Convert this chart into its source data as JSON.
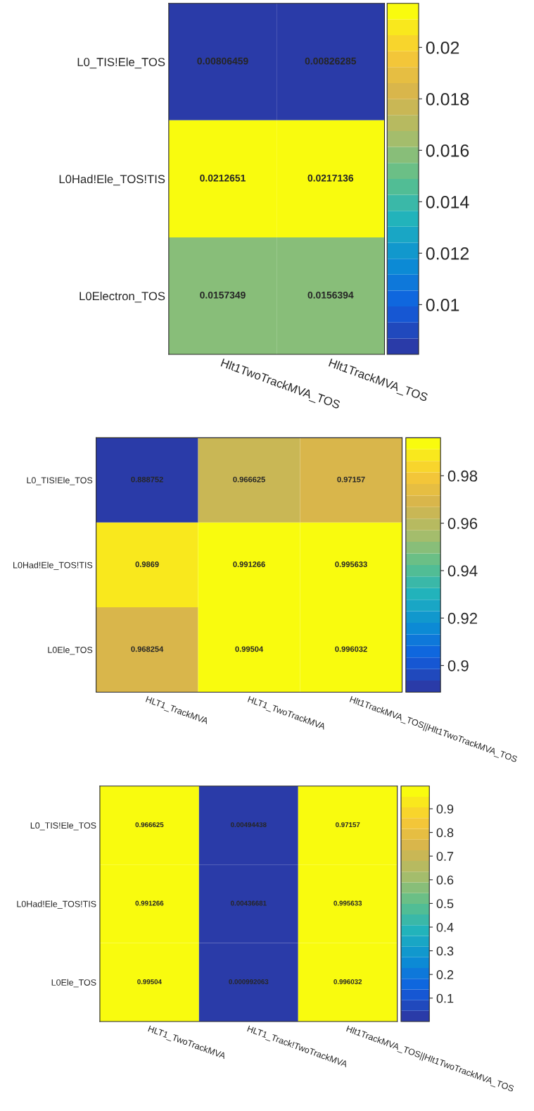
{
  "chart_data": [
    {
      "type": "heatmap",
      "categories": [
        "Hlt1TwoTrackMVA_TOS",
        "Hlt1TrackMVA_TOS"
      ],
      "y_categories": [
        "L0_TIS!Ele_TOS",
        "L0Had!Ele_TOS!TIS",
        "L0Electron_TOS"
      ],
      "cells": [
        [
          0.00806459,
          0.00826285
        ],
        [
          0.0212651,
          0.0217136
        ],
        [
          0.0157349,
          0.0156394
        ]
      ],
      "clim": [
        0.00806459,
        0.0217136
      ],
      "cticks": [
        0.01,
        0.012,
        0.014,
        0.016,
        0.018,
        0.02
      ],
      "data_labels": true
    },
    {
      "type": "heatmap",
      "categories": [
        "HLT1_TrackMVA",
        "HLT1_TwoTrackMVA",
        "Hlt1TrackMVA_TOS||Hlt1TwoTrackMVA_TOS"
      ],
      "y_categories": [
        "L0_TIS!Ele_TOS",
        "L0Had!Ele_TOS!TIS",
        "L0Ele_TOS"
      ],
      "cells": [
        [
          0.888752,
          0.966625,
          0.97157
        ],
        [
          0.9869,
          0.991266,
          0.995633
        ],
        [
          0.968254,
          0.99504,
          0.996032
        ]
      ],
      "clim": [
        0.888752,
        0.996032
      ],
      "cticks": [
        0.9,
        0.92,
        0.94,
        0.96,
        0.98
      ],
      "data_labels": true
    },
    {
      "type": "heatmap",
      "categories": [
        "HLT1_TwoTrackMVA",
        "HLT1_Track!TwoTrackMVA",
        "Hlt1TrackMVA_TOS||Hlt1TwoTrackMVA_TOS"
      ],
      "y_categories": [
        "L0_TIS!Ele_TOS",
        "L0Had!Ele_TOS!TIS",
        "L0Ele_TOS"
      ],
      "cells": [
        [
          0.966625,
          0.00494438,
          0.97157
        ],
        [
          0.991266,
          0.00436681,
          0.995633
        ],
        [
          0.99504,
          0.000992063,
          0.996032
        ]
      ],
      "clim": [
        0.000992063,
        0.996032
      ],
      "cticks": [
        0.1,
        0.2,
        0.3,
        0.4,
        0.5,
        0.6,
        0.7,
        0.8,
        0.9
      ],
      "data_labels": true
    }
  ]
}
